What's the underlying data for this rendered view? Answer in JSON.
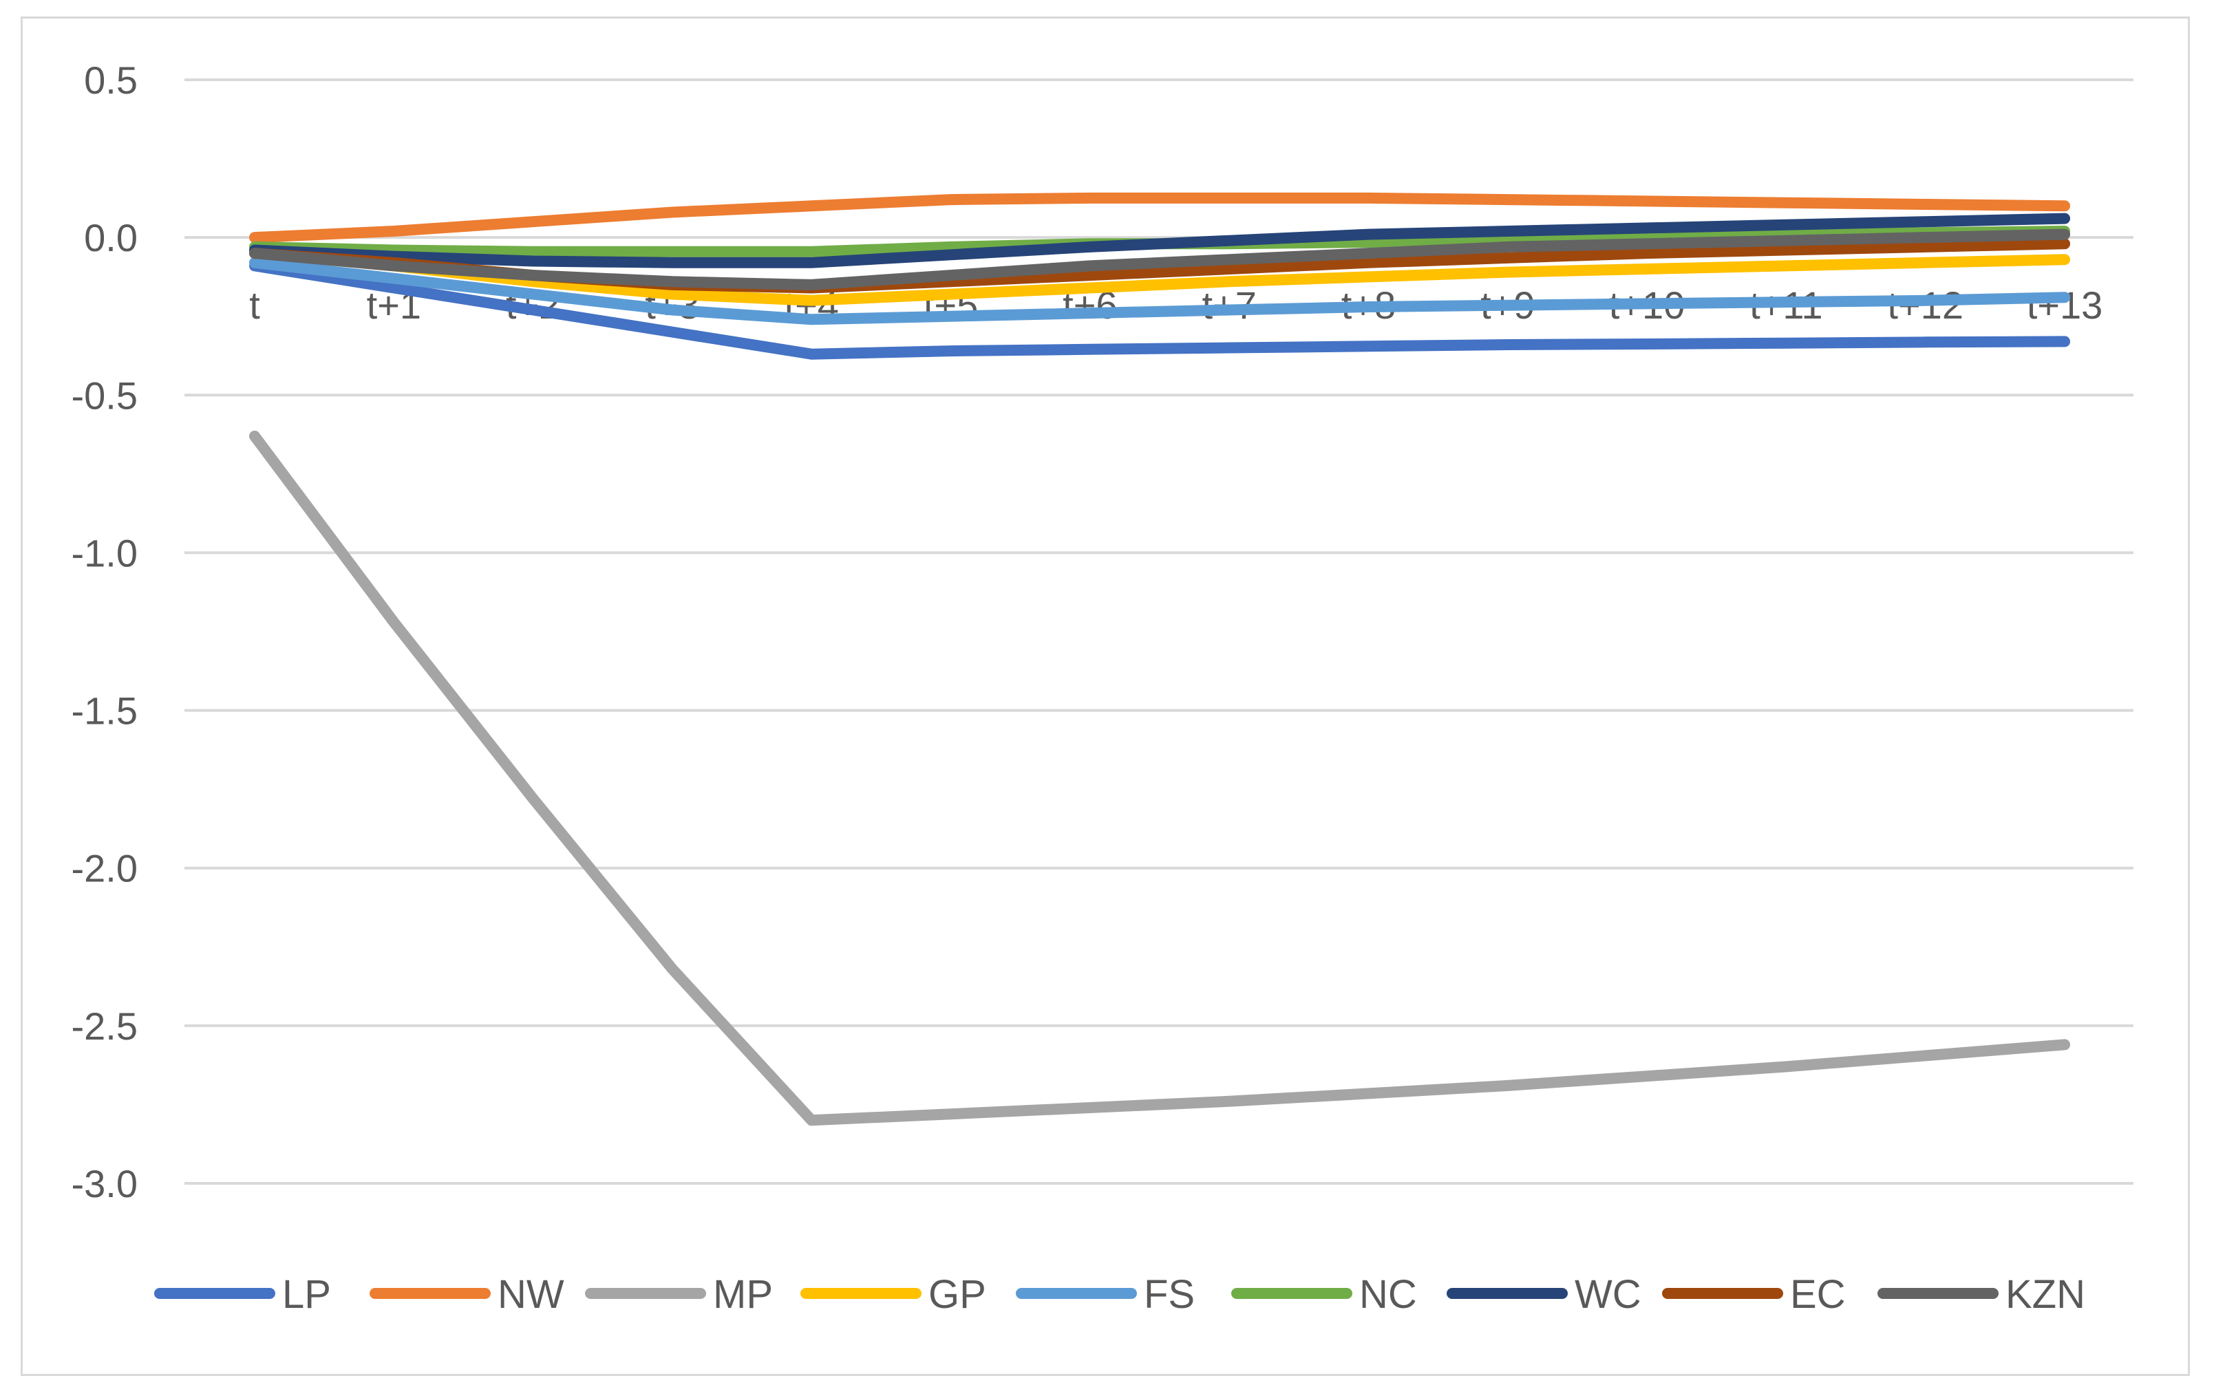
{
  "chart_data": {
    "type": "line",
    "title": "",
    "xlabel": "",
    "ylabel": "",
    "ylim": [
      -3.0,
      0.5
    ],
    "yticks": [
      0.5,
      0.0,
      -0.5,
      -1.0,
      -1.5,
      -2.0,
      -2.5,
      -3.0
    ],
    "ytick_labels": [
      "0.5",
      "0.0",
      "-0.5",
      "-1.0",
      "-1.5",
      "-2.0",
      "-2.5",
      "-3.0"
    ],
    "grid": true,
    "legend_position": "bottom",
    "categories": [
      "t",
      "t+1",
      "t+2",
      "t+3",
      "t+4",
      "t+5",
      "t+6",
      "t+7",
      "t+8",
      "t+9",
      "t+10",
      "t+11",
      "t+12",
      "t+13"
    ],
    "series": [
      {
        "name": "LP",
        "color": "#4472C4",
        "values": [
          -0.09,
          -0.16,
          -0.23,
          -0.3,
          -0.37,
          -0.36,
          -0.355,
          -0.35,
          -0.345,
          -0.34,
          -0.338,
          -0.335,
          -0.332,
          -0.33
        ]
      },
      {
        "name": "NW",
        "color": "#ED7D31",
        "values": [
          0.0,
          0.02,
          0.05,
          0.08,
          0.1,
          0.12,
          0.125,
          0.125,
          0.125,
          0.12,
          0.115,
          0.11,
          0.105,
          0.1
        ]
      },
      {
        "name": "MP",
        "color": "#A5A5A5",
        "values": [
          -0.63,
          -1.22,
          -1.78,
          -2.32,
          -2.8,
          -2.78,
          -2.76,
          -2.74,
          -2.715,
          -2.69,
          -2.66,
          -2.63,
          -2.595,
          -2.56
        ]
      },
      {
        "name": "GP",
        "color": "#FFC000",
        "values": [
          -0.05,
          -0.09,
          -0.14,
          -0.18,
          -0.2,
          -0.18,
          -0.16,
          -0.14,
          -0.125,
          -0.11,
          -0.1,
          -0.09,
          -0.08,
          -0.07
        ]
      },
      {
        "name": "FS",
        "color": "#5B9BD5",
        "values": [
          -0.08,
          -0.13,
          -0.18,
          -0.23,
          -0.26,
          -0.25,
          -0.24,
          -0.23,
          -0.22,
          -0.215,
          -0.21,
          -0.205,
          -0.2,
          -0.19
        ]
      },
      {
        "name": "NC",
        "color": "#70AD47",
        "values": [
          -0.03,
          -0.04,
          -0.045,
          -0.045,
          -0.045,
          -0.03,
          -0.02,
          -0.02,
          -0.015,
          -0.01,
          0.0,
          0.01,
          0.015,
          0.02
        ]
      },
      {
        "name": "WC",
        "color": "#264478",
        "values": [
          -0.04,
          -0.06,
          -0.075,
          -0.08,
          -0.08,
          -0.055,
          -0.03,
          -0.01,
          0.01,
          0.02,
          0.03,
          0.04,
          0.05,
          0.06
        ]
      },
      {
        "name": "EC",
        "color": "#9E480E",
        "values": [
          -0.05,
          -0.08,
          -0.12,
          -0.15,
          -0.16,
          -0.14,
          -0.12,
          -0.1,
          -0.08,
          -0.065,
          -0.05,
          -0.04,
          -0.03,
          -0.02
        ]
      },
      {
        "name": "KZN",
        "color": "#636363",
        "values": [
          -0.05,
          -0.09,
          -0.12,
          -0.14,
          -0.15,
          -0.12,
          -0.09,
          -0.07,
          -0.05,
          -0.03,
          -0.02,
          -0.01,
          0.0,
          0.01
        ]
      }
    ]
  }
}
